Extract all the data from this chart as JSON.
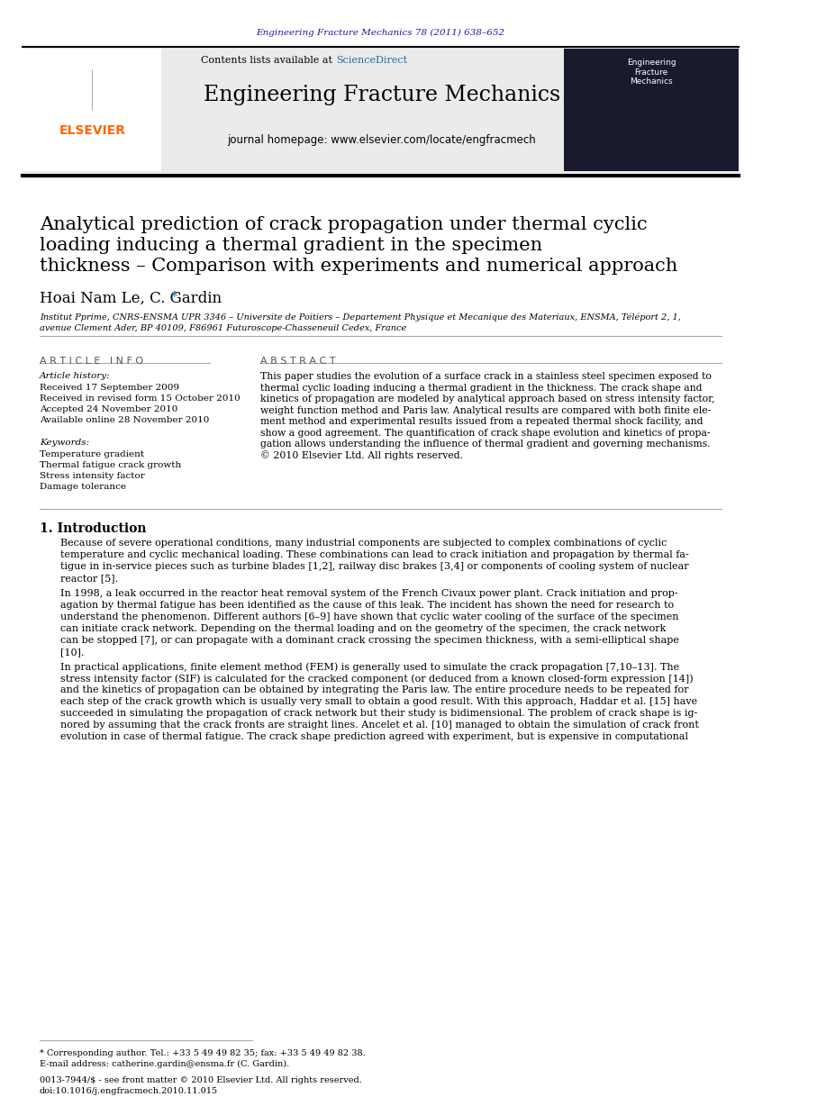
{
  "journal_ref": "Engineering Fracture Mechanics 78 (2011) 638–652",
  "journal_ref_color": "#1a1aaa",
  "contents_text": "Contents lists available at ",
  "sciencedirect_text": "ScienceDirect",
  "sciencedirect_color": "#1a6fa0",
  "journal_name": "Engineering Fracture Mechanics",
  "journal_homepage": "journal homepage: www.elsevier.com/locate/engfracmech",
  "elsevier_color": "#ff6600",
  "header_bg": "#e8e8e8",
  "paper_title_line1": "Analytical prediction of crack propagation under thermal cyclic",
  "paper_title_line2": "loading inducing a thermal gradient in the specimen",
  "paper_title_line3": "thickness – Comparison with experiments and numerical approach",
  "authors": "Hoai Nam Le, C. Gardin",
  "affiliation_line1": "Institut Pprime, CNRS-ENSMA UPR 3346 – Universite de Poitiers – Departement Physique et Mecanique des Materiaux, ENSMA, Téléport 2, 1,",
  "affiliation_line2": "avenue Clement Ader, BP 40109, F86961 Futuroscope-Chasseneuil Cedex, France",
  "article_info_header": "A R T I C L E   I N F O",
  "abstract_header": "A B S T R A C T",
  "article_history_label": "Article history:",
  "received1": "Received 17 September 2009",
  "received2": "Received in revised form 15 October 2010",
  "accepted": "Accepted 24 November 2010",
  "available": "Available online 28 November 2010",
  "keywords_label": "Keywords:",
  "keyword1": "Temperature gradient",
  "keyword2": "Thermal fatigue crack growth",
  "keyword3": "Stress intensity factor",
  "keyword4": "Damage tolerance",
  "abstract_text": "This paper studies the evolution of a surface crack in a stainless steel specimen exposed to thermal cyclic loading inducing a thermal gradient in the thickness. The crack shape and kinetics of propagation are modeled by analytical approach based on stress intensity factor, weight function method and Paris law. Analytical results are compared with both finite element method and experimental results issued from a repeated thermal shock facility, and show a good agreement. The quantification of crack shape evolution and kinetics of propagation allows understanding the influence of thermal gradient and governing mechanisms.\n© 2010 Elsevier Ltd. All rights reserved.",
  "intro_header": "1. Introduction",
  "intro_text1": "Because of severe operational conditions, many industrial components are subjected to complex combinations of cyclic temperature and cyclic mechanical loading. These combinations can lead to crack initiation and propagation by thermal fatigue in in-service pieces such as turbine blades [1,2], railway disc brakes [3,4] or components of cooling system of nuclear reactor [5].",
  "intro_text2": "In 1998, a leak occurred in the reactor heat removal system of the French Civaux power plant. Crack initiation and propagation by thermal fatigue has been identified as the cause of this leak. The incident has shown the need for research to understand the phenomenon. Different authors [6–9] have shown that cyclic water cooling of the surface of the specimen can initiate crack network. Depending on the thermal loading and on the geometry of the specimen, the crack network can be stopped [7], or can propagate with a dominant crack crossing the specimen thickness, with a semi-elliptical shape [10].",
  "intro_text3": "In practical applications, finite element method (FEM) is generally used to simulate the crack propagation [7,10–13]. The stress intensity factor (SIF) is calculated for the cracked component (or deduced from a known closed-form expression [14]) and the kinetics of propagation can be obtained by integrating the Paris law. The entire procedure needs to be repeated for each step of the crack growth which is usually very small to obtain a good result. With this approach, Haddar et al. [15] have succeeded in simulating the propagation of crack network but their study is bidimensional. The problem of crack shape is ignored by assuming that the crack fronts are straight lines. Ancelet et al. [10] managed to obtain the simulation of crack front evolution in case of thermal fatigue. The crack shape prediction agreed with experiment, but is expensive in computational",
  "footnote_star": "* Corresponding author. Tel.: +33 5 49 49 82 35; fax: +33 5 49 49 82 38.",
  "footnote_email": "E-mail address: catherine.gardin@ensma.fr (C. Gardin).",
  "footnote_issn": "0013-7944/$ - see front matter © 2010 Elsevier Ltd. All rights reserved.",
  "footnote_doi": "doi:10.1016/j.engfracmech.2010.11.015",
  "bg_color": "#ffffff",
  "text_color": "#000000",
  "link_color": "#1a6fa0"
}
